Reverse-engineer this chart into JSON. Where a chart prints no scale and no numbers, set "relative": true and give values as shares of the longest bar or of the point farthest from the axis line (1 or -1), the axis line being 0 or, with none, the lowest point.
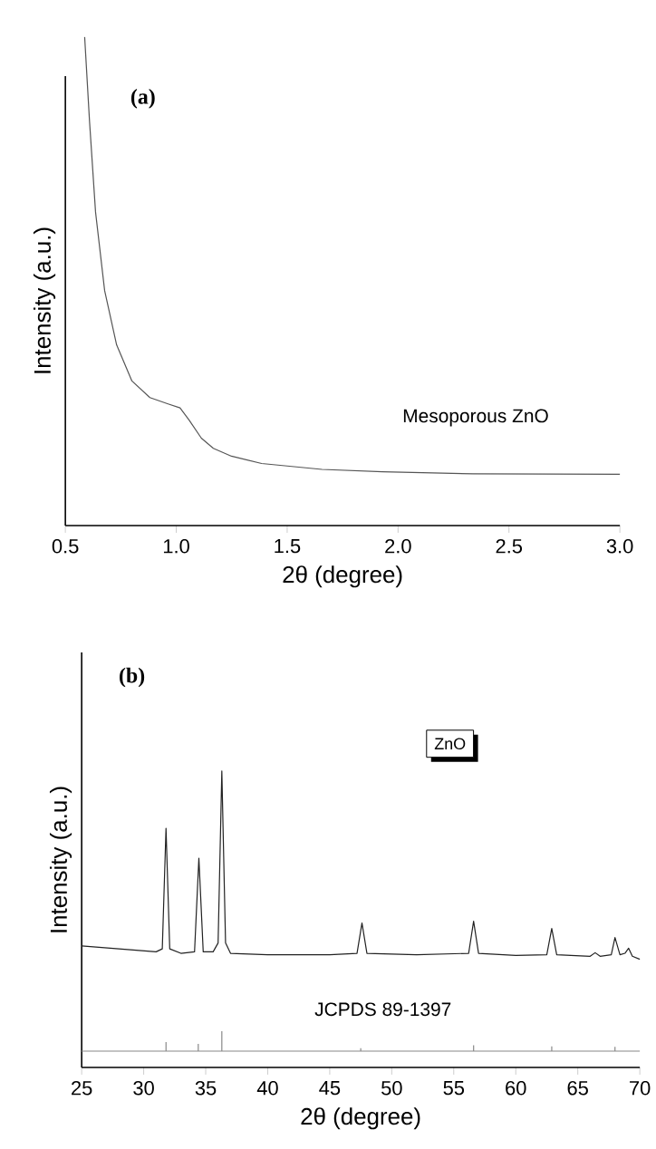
{
  "chart_data": [
    {
      "type": "line",
      "relative": true,
      "color": "#555555",
      "xlabel": "2θ (degree)",
      "ylabel": "Intensity (a.u.)",
      "xlim": [
        0.5,
        3.0
      ],
      "xticks": [
        {
          "value": 0.5,
          "label": "0.5"
        },
        {
          "value": 1.0,
          "label": "1.0"
        },
        {
          "value": 1.5,
          "label": "1.5"
        },
        {
          "value": 2.0,
          "label": "2.0"
        },
        {
          "value": 2.5,
          "label": "2.5"
        },
        {
          "value": 3.0,
          "label": "3.0"
        }
      ],
      "x": [
        0.587,
        0.609,
        0.636,
        0.677,
        0.731,
        0.8,
        0.881,
        0.963,
        1.017,
        1.058,
        1.113,
        1.167,
        1.249,
        1.385,
        1.657,
        1.93,
        2.338,
        3.0
      ],
      "values": [
        1.0,
        0.827,
        0.642,
        0.481,
        0.37,
        0.296,
        0.262,
        0.249,
        0.241,
        0.216,
        0.179,
        0.158,
        0.142,
        0.127,
        0.115,
        0.11,
        0.106,
        0.105
      ],
      "annotations": [
        "(a)",
        "Mesoporous ZnO"
      ]
    },
    {
      "type": "line",
      "relative": true,
      "color": "#222222",
      "xlabel": "2θ (degree)",
      "ylabel": "Intensity (a.u.)",
      "xlim": [
        25,
        70
      ],
      "xticks": [
        25,
        30,
        35,
        40,
        45,
        50,
        55,
        60,
        65,
        70
      ],
      "x": [
        25,
        28,
        31,
        31.5,
        31.8,
        32.1,
        33,
        34.1,
        34.45,
        34.8,
        35.6,
        36.0,
        36.3,
        36.6,
        37,
        40,
        45,
        47.2,
        47.6,
        48.0,
        52,
        56.2,
        56.6,
        57.0,
        60,
        62.5,
        62.9,
        63.3,
        66.0,
        66.4,
        66.8,
        67.7,
        68.0,
        68.4,
        68.8,
        69.1,
        69.4,
        70
      ],
      "values": [
        0.41,
        0.4,
        0.39,
        0.4,
        0.807,
        0.4,
        0.385,
        0.39,
        0.706,
        0.39,
        0.39,
        0.42,
        1.0,
        0.42,
        0.385,
        0.38,
        0.38,
        0.385,
        0.487,
        0.385,
        0.38,
        0.385,
        0.493,
        0.385,
        0.378,
        0.38,
        0.469,
        0.38,
        0.375,
        0.387,
        0.375,
        0.38,
        0.438,
        0.38,
        0.385,
        0.402,
        0.375,
        0.365
      ],
      "annotations": [
        "(b)",
        "ZnO"
      ]
    },
    {
      "type": "bar",
      "relative": true,
      "color": "#888888",
      "xlim": [
        25,
        70
      ],
      "tick_labels": false,
      "x": [
        31.8,
        34.4,
        36.3,
        47.5,
        56.6,
        62.9,
        68.0
      ],
      "values": [
        0.45,
        0.36,
        1.0,
        0.15,
        0.3,
        0.24,
        0.21
      ],
      "annotations": [
        "JCPDS 89-1397"
      ]
    }
  ]
}
